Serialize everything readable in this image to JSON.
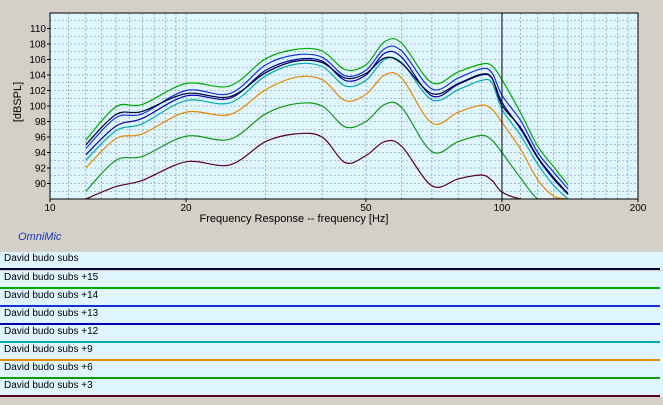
{
  "chart_data": {
    "type": "line",
    "xlabel": "Frequency Response -- frequency [Hz]",
    "ylabel": "[dBSPL]",
    "xscale": "log",
    "xlim": [
      10,
      200
    ],
    "ylim": [
      88,
      112
    ],
    "xticks": [
      10,
      20,
      50,
      100,
      200
    ],
    "yticks": [
      90,
      92,
      94,
      96,
      98,
      100,
      102,
      104,
      106,
      108,
      110
    ],
    "grid": true,
    "cursor_x": 100,
    "x": [
      12,
      14,
      16,
      20,
      25,
      30,
      35,
      40,
      45,
      50,
      55,
      60,
      70,
      80,
      90,
      95,
      100,
      110,
      120,
      130,
      140
    ],
    "series": [
      {
        "name": "David budo subs",
        "color": "#000033",
        "values": [
          95.0,
          98.9,
          99.3,
          101.6,
          101.2,
          104.3,
          105.8,
          105.6,
          103.6,
          104.2,
          106.2,
          105.5,
          101.6,
          102.9,
          104.1,
          103.6,
          100.1,
          97.2,
          93.4,
          90.8,
          88.7
        ]
      },
      {
        "name": "David budo subs +15",
        "color": "#00aa00",
        "values": [
          95.6,
          99.9,
          100.2,
          102.9,
          102.6,
          106.1,
          107.3,
          107.1,
          104.7,
          105.3,
          108.3,
          108.1,
          103.0,
          104.4,
          105.4,
          105.2,
          103.4,
          99.1,
          94.8,
          92.2,
          89.8
        ]
      },
      {
        "name": "David budo subs +14",
        "color": "#1530d8",
        "values": [
          94.5,
          98.5,
          99.0,
          102.0,
          101.6,
          105.3,
          106.6,
          106.3,
          103.9,
          104.6,
          107.4,
          107.1,
          102.2,
          103.6,
          104.8,
          104.3,
          101.4,
          98.1,
          94.0,
          91.5,
          89.3
        ]
      },
      {
        "name": "David budo subs +13",
        "color": "#0000aa",
        "values": [
          93.7,
          97.4,
          98.4,
          101.3,
          101.0,
          104.6,
          106.0,
          105.8,
          103.3,
          104.0,
          106.8,
          106.3,
          101.3,
          102.8,
          104.0,
          103.6,
          100.5,
          97.0,
          93.3,
          90.6,
          88.6
        ]
      },
      {
        "name": "David budo subs +12",
        "color": "#00aaaa",
        "values": [
          93.0,
          96.8,
          97.7,
          100.7,
          100.4,
          103.9,
          105.4,
          105.1,
          102.6,
          103.3,
          106.0,
          105.6,
          100.8,
          102.1,
          103.3,
          103.0,
          99.6,
          96.2,
          92.5,
          89.8,
          88.0
        ]
      },
      {
        "name": "David budo subs +9",
        "color": "#e58a00",
        "values": [
          92.0,
          95.8,
          96.4,
          99.2,
          98.9,
          102.1,
          103.7,
          103.4,
          100.7,
          101.5,
          104.0,
          103.6,
          97.8,
          99.2,
          100.1,
          99.6,
          97.9,
          94.4,
          90.5,
          88.4,
          88.0
        ]
      },
      {
        "name": "David budo subs +6",
        "color": "#119911",
        "values": [
          89.0,
          93.0,
          93.5,
          96.1,
          95.7,
          99.0,
          100.3,
          100.0,
          97.3,
          98.0,
          100.2,
          99.8,
          94.1,
          95.4,
          96.2,
          95.6,
          94.0,
          90.7,
          88.0,
          88.0,
          88.0
        ]
      },
      {
        "name": "David budo subs +3",
        "color": "#5a0020",
        "values": [
          88.0,
          89.6,
          90.4,
          92.8,
          92.4,
          95.4,
          96.4,
          96.0,
          92.7,
          93.6,
          95.4,
          94.8,
          89.7,
          90.6,
          91.1,
          90.4,
          88.9,
          88.0,
          88.0,
          88.0,
          88.0
        ]
      }
    ]
  },
  "brand_label": "OmniMic",
  "legend": [
    {
      "label": "David budo subs",
      "color": "#000033"
    },
    {
      "label": "David budo subs +15",
      "color": "#00aa00"
    },
    {
      "label": "David budo subs +14",
      "color": "#1530d8"
    },
    {
      "label": "David budo subs +13",
      "color": "#0000aa"
    },
    {
      "label": "David budo subs +12",
      "color": "#00aaaa"
    },
    {
      "label": "David budo subs +9",
      "color": "#e58a00"
    },
    {
      "label": "David budo subs +6",
      "color": "#119911"
    },
    {
      "label": "David budo subs +3",
      "color": "#5a0020"
    }
  ]
}
